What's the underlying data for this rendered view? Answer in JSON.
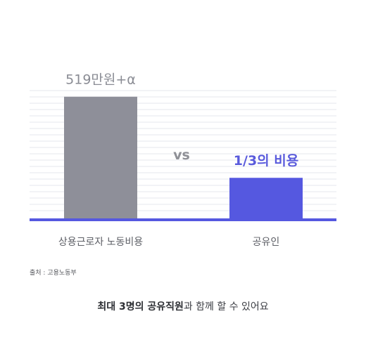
{
  "chart_data": {
    "type": "bar",
    "categories": [
      "상용근로자 노동비용",
      "공유인"
    ],
    "values": [
      5190000,
      1730000
    ],
    "data_labels": [
      "519만원+α",
      "1/3의 비용"
    ],
    "annotation": "vs",
    "bar_colors": [
      "#8e8f99",
      "#5558e0"
    ],
    "baseline_color": "#5558e0",
    "grid": true,
    "ylim": [
      0,
      6200000
    ]
  },
  "source_text": "출처 : 고용노동부",
  "footer": {
    "bold": "최대 3명의 공유직원",
    "normal": "과 함께 할 수 있어요"
  }
}
